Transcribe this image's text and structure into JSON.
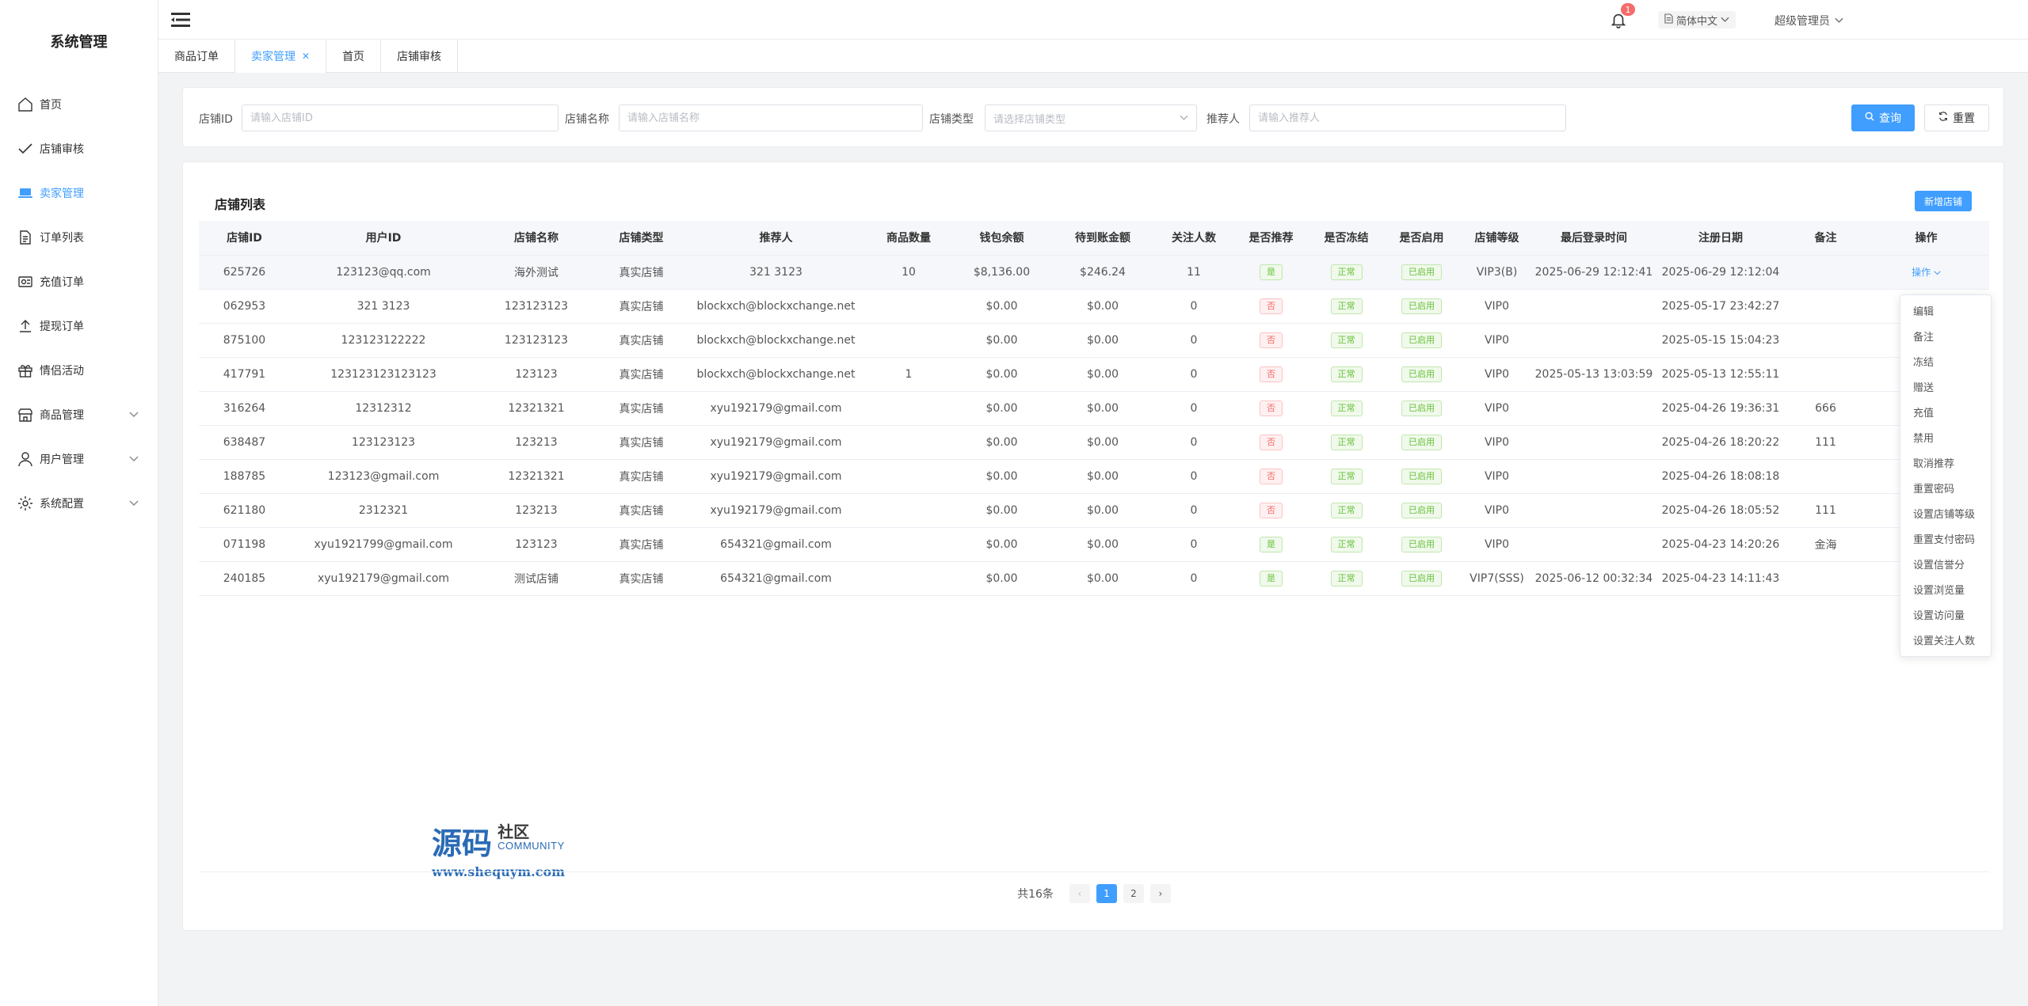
{
  "sidebar": {
    "title": "系统管理",
    "items": [
      {
        "label": "首页",
        "icon": "home-icon",
        "active": false,
        "expandable": false
      },
      {
        "label": "店铺审核",
        "icon": "check-icon",
        "active": false,
        "expandable": false
      },
      {
        "label": "卖家管理",
        "icon": "laptop-icon",
        "active": true,
        "expandable": false
      },
      {
        "label": "订单列表",
        "icon": "document-icon",
        "active": false,
        "expandable": false
      },
      {
        "label": "充值订单",
        "icon": "recharge-icon",
        "active": false,
        "expandable": false
      },
      {
        "label": "提现订单",
        "icon": "upload-icon",
        "active": false,
        "expandable": false
      },
      {
        "label": "情侣活动",
        "icon": "gift-icon",
        "active": false,
        "expandable": false
      },
      {
        "label": "商品管理",
        "icon": "shop-icon",
        "active": false,
        "expandable": true
      },
      {
        "label": "用户管理",
        "icon": "user-icon",
        "active": false,
        "expandable": true
      },
      {
        "label": "系统配置",
        "icon": "gear-icon",
        "active": false,
        "expandable": true
      }
    ]
  },
  "topbar": {
    "notification_count": "1",
    "language": "简体中文",
    "username": "超级管理员"
  },
  "tabs": [
    {
      "label": "商品订单",
      "active": false,
      "closable": false
    },
    {
      "label": "卖家管理",
      "active": true,
      "closable": true
    },
    {
      "label": "首页",
      "active": false,
      "closable": false
    },
    {
      "label": "店铺审核",
      "active": false,
      "closable": false
    }
  ],
  "search": {
    "shop_id_label": "店铺ID",
    "shop_id_placeholder": "请输入店铺ID",
    "shop_name_label": "店铺名称",
    "shop_name_placeholder": "请输入店铺名称",
    "shop_type_label": "店铺类型",
    "shop_type_placeholder": "请选择店铺类型",
    "referrer_label": "推荐人",
    "referrer_placeholder": "请输入推荐人",
    "query_label": "查询",
    "reset_label": "重置"
  },
  "table": {
    "title": "店铺列表",
    "add_label": "新增店铺",
    "columns": [
      "店铺ID",
      "用户ID",
      "店铺名称",
      "店铺类型",
      "推荐人",
      "商品数量",
      "钱包余额",
      "待到账金额",
      "关注人数",
      "是否推荐",
      "是否冻结",
      "是否启用",
      "店铺等级",
      "最后登录时间",
      "注册日期",
      "备注",
      "操作"
    ],
    "rows": [
      {
        "shop_id": "625726",
        "user_id": "123123@qq.com",
        "shop_name": "海外测试",
        "type": "真实店铺",
        "referrer": "321 3123",
        "goods": "10",
        "wallet": "$8,136.00",
        "pending": "$246.24",
        "followers": "11",
        "recommend": "是",
        "recommend_yes": true,
        "frozen": "正常",
        "enabled": "已启用",
        "level": "VIP3(B)",
        "last_login": "2025-06-29 12:12:41",
        "register": "2025-06-29 12:12:04",
        "remark": ""
      },
      {
        "shop_id": "062953",
        "user_id": "321 3123",
        "shop_name": "123123123",
        "type": "真实店铺",
        "referrer": "blockxch@blockxchange.net",
        "goods": "",
        "wallet": "$0.00",
        "pending": "$0.00",
        "followers": "0",
        "recommend": "否",
        "recommend_yes": false,
        "frozen": "正常",
        "enabled": "已启用",
        "level": "VIP0",
        "last_login": "",
        "register": "2025-05-17 23:42:27",
        "remark": ""
      },
      {
        "shop_id": "875100",
        "user_id": "123123122222",
        "shop_name": "123123123",
        "type": "真实店铺",
        "referrer": "blockxch@blockxchange.net",
        "goods": "",
        "wallet": "$0.00",
        "pending": "$0.00",
        "followers": "0",
        "recommend": "否",
        "recommend_yes": false,
        "frozen": "正常",
        "enabled": "已启用",
        "level": "VIP0",
        "last_login": "",
        "register": "2025-05-15 15:04:23",
        "remark": ""
      },
      {
        "shop_id": "417791",
        "user_id": "123123123123123",
        "shop_name": "123123",
        "type": "真实店铺",
        "referrer": "blockxch@blockxchange.net",
        "goods": "1",
        "wallet": "$0.00",
        "pending": "$0.00",
        "followers": "0",
        "recommend": "否",
        "recommend_yes": false,
        "frozen": "正常",
        "enabled": "已启用",
        "level": "VIP0",
        "last_login": "2025-05-13 13:03:59",
        "register": "2025-05-13 12:55:11",
        "remark": ""
      },
      {
        "shop_id": "316264",
        "user_id": "12312312",
        "shop_name": "12321321",
        "type": "真实店铺",
        "referrer": "xyu192179@gmail.com",
        "goods": "",
        "wallet": "$0.00",
        "pending": "$0.00",
        "followers": "0",
        "recommend": "否",
        "recommend_yes": false,
        "frozen": "正常",
        "enabled": "已启用",
        "level": "VIP0",
        "last_login": "",
        "register": "2025-04-26 19:36:31",
        "remark": "666"
      },
      {
        "shop_id": "638487",
        "user_id": "123123123",
        "shop_name": "123213",
        "type": "真实店铺",
        "referrer": "xyu192179@gmail.com",
        "goods": "",
        "wallet": "$0.00",
        "pending": "$0.00",
        "followers": "0",
        "recommend": "否",
        "recommend_yes": false,
        "frozen": "正常",
        "enabled": "已启用",
        "level": "VIP0",
        "last_login": "",
        "register": "2025-04-26 18:20:22",
        "remark": "111"
      },
      {
        "shop_id": "188785",
        "user_id": "123123@gmail.com",
        "shop_name": "12321321",
        "type": "真实店铺",
        "referrer": "xyu192179@gmail.com",
        "goods": "",
        "wallet": "$0.00",
        "pending": "$0.00",
        "followers": "0",
        "recommend": "否",
        "recommend_yes": false,
        "frozen": "正常",
        "enabled": "已启用",
        "level": "VIP0",
        "last_login": "",
        "register": "2025-04-26 18:08:18",
        "remark": ""
      },
      {
        "shop_id": "621180",
        "user_id": "2312321",
        "shop_name": "123213",
        "type": "真实店铺",
        "referrer": "xyu192179@gmail.com",
        "goods": "",
        "wallet": "$0.00",
        "pending": "$0.00",
        "followers": "0",
        "recommend": "否",
        "recommend_yes": false,
        "frozen": "正常",
        "enabled": "已启用",
        "level": "VIP0",
        "last_login": "",
        "register": "2025-04-26 18:05:52",
        "remark": "111"
      },
      {
        "shop_id": "071198",
        "user_id": "xyu1921799@gmail.com",
        "shop_name": "123123",
        "type": "真实店铺",
        "referrer": "654321@gmail.com",
        "goods": "",
        "wallet": "$0.00",
        "pending": "$0.00",
        "followers": "0",
        "recommend": "是",
        "recommend_yes": true,
        "frozen": "正常",
        "enabled": "已启用",
        "level": "VIP0",
        "last_login": "",
        "register": "2025-04-23 14:20:26",
        "remark": "金海"
      },
      {
        "shop_id": "240185",
        "user_id": "xyu192179@gmail.com",
        "shop_name": "测试店铺",
        "type": "真实店铺",
        "referrer": "654321@gmail.com",
        "goods": "",
        "wallet": "$0.00",
        "pending": "$0.00",
        "followers": "0",
        "recommend": "是",
        "recommend_yes": true,
        "frozen": "正常",
        "enabled": "已启用",
        "level": "VIP7(SSS)",
        "last_login": "2025-06-12 00:32:34",
        "register": "2025-04-23 14:11:43",
        "remark": ""
      }
    ],
    "op_label": "操作"
  },
  "dropdown": {
    "items": [
      "编辑",
      "备注",
      "冻结",
      "赠送",
      "充值",
      "禁用",
      "取消推荐",
      "重置密码",
      "设置店铺等级",
      "重置支付密码",
      "设置信誉分",
      "设置浏览量",
      "设置访问量",
      "设置关注人数"
    ]
  },
  "watermark": {
    "big": "源码",
    "small": "社区",
    "community": "COMMUNITY",
    "url": "www.shequym.com"
  },
  "pagination": {
    "total_label": "共16条",
    "pages": [
      "1",
      "2"
    ],
    "current": "1",
    "prev": "‹",
    "next": "›"
  },
  "colors": {
    "accent": "#409eff",
    "success": "#67c23a",
    "danger": "#f56c6c"
  }
}
